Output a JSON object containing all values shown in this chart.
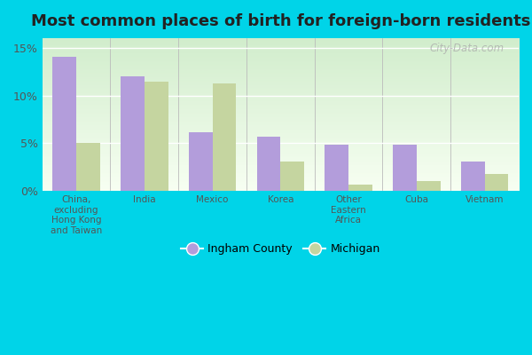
{
  "title": "Most common places of birth for foreign-born residents",
  "categories": [
    "China,\nexcluding\nHong Kong\nand Taiwan",
    "India",
    "Mexico",
    "Korea",
    "Other\nEastern\nAfrica",
    "Cuba",
    "Vietnam"
  ],
  "ingham_county": [
    14.0,
    12.0,
    6.2,
    5.7,
    4.9,
    4.9,
    3.1
  ],
  "michigan": [
    5.0,
    11.4,
    11.3,
    3.1,
    0.7,
    1.1,
    1.8
  ],
  "ingham_color": "#b39ddb",
  "michigan_color": "#c5d5a0",
  "background_outer": "#00d4e8",
  "legend_ingham": "Ingham County",
  "legend_michigan": "Michigan",
  "yticks": [
    0,
    5,
    10,
    15
  ],
  "ylim": [
    0,
    16
  ],
  "bar_width": 0.35,
  "title_fontsize": 13,
  "watermark": "City-Data.com"
}
